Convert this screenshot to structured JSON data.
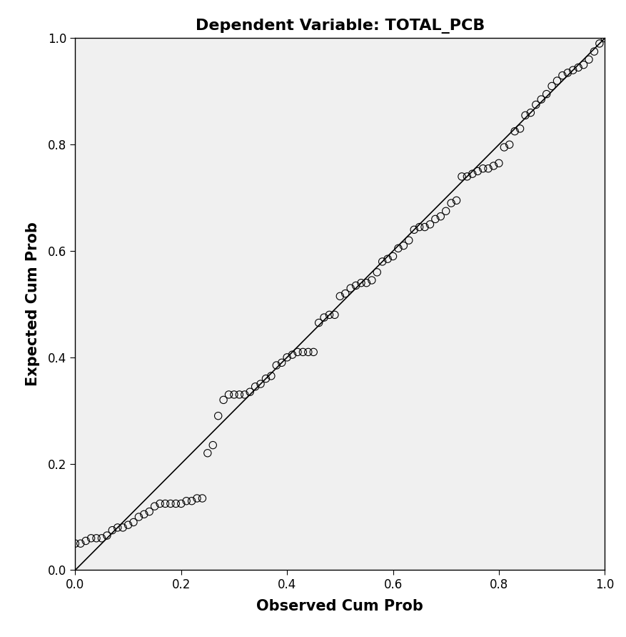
{
  "chart_data": {
    "type": "scatter",
    "title": "Dependent Variable: TOTAL_PCB",
    "x_label": "Observed Cum Prob",
    "y_label": "Expected Cum Prob",
    "x": [
      0.0,
      0.01,
      0.02,
      0.03,
      0.04,
      0.05,
      0.06,
      0.07,
      0.08,
      0.09,
      0.1,
      0.11,
      0.12,
      0.13,
      0.14,
      0.15,
      0.16,
      0.17,
      0.18,
      0.19,
      0.2,
      0.21,
      0.22,
      0.23,
      0.24,
      0.25,
      0.26,
      0.27,
      0.28,
      0.29,
      0.3,
      0.31,
      0.32,
      0.33,
      0.34,
      0.35,
      0.36,
      0.37,
      0.38,
      0.39,
      0.4,
      0.41,
      0.42,
      0.43,
      0.44,
      0.45,
      0.46,
      0.47,
      0.48,
      0.49,
      0.5,
      0.51,
      0.52,
      0.53,
      0.54,
      0.55,
      0.56,
      0.57,
      0.58,
      0.59,
      0.6,
      0.61,
      0.62,
      0.63,
      0.64,
      0.65,
      0.66,
      0.67,
      0.68,
      0.69,
      0.7,
      0.71,
      0.72,
      0.73,
      0.74,
      0.75,
      0.76,
      0.77,
      0.78,
      0.79,
      0.8,
      0.81,
      0.82,
      0.83,
      0.84,
      0.85,
      0.86,
      0.87,
      0.88,
      0.89,
      0.9,
      0.91,
      0.92,
      0.93,
      0.94,
      0.95,
      0.96,
      0.97,
      0.98,
      0.99,
      1.0
    ],
    "values": [
      0.05,
      0.05,
      0.055,
      0.06,
      0.06,
      0.06,
      0.065,
      0.075,
      0.08,
      0.08,
      0.085,
      0.09,
      0.1,
      0.105,
      0.11,
      0.12,
      0.125,
      0.125,
      0.125,
      0.125,
      0.125,
      0.13,
      0.13,
      0.135,
      0.135,
      0.22,
      0.235,
      0.29,
      0.32,
      0.33,
      0.33,
      0.33,
      0.33,
      0.335,
      0.345,
      0.35,
      0.36,
      0.365,
      0.385,
      0.39,
      0.4,
      0.405,
      0.41,
      0.41,
      0.41,
      0.41,
      0.465,
      0.475,
      0.48,
      0.48,
      0.515,
      0.52,
      0.53,
      0.535,
      0.54,
      0.54,
      0.545,
      0.56,
      0.58,
      0.585,
      0.59,
      0.605,
      0.61,
      0.62,
      0.64,
      0.645,
      0.645,
      0.65,
      0.66,
      0.665,
      0.675,
      0.69,
      0.695,
      0.74,
      0.74,
      0.745,
      0.75,
      0.755,
      0.755,
      0.76,
      0.765,
      0.795,
      0.8,
      0.825,
      0.83,
      0.855,
      0.86,
      0.875,
      0.885,
      0.895,
      0.91,
      0.92,
      0.93,
      0.935,
      0.94,
      0.945,
      0.95,
      0.96,
      0.975,
      0.99,
      1.0
    ],
    "reference_line": {
      "x": [
        0.0,
        1.0
      ],
      "y": [
        0.0,
        1.0
      ]
    },
    "marker": "o",
    "color": "#000000",
    "xlim": [
      0.0,
      1.0
    ],
    "ylim": [
      0.0,
      1.0
    ],
    "xticks": [
      0.0,
      0.2,
      0.4,
      0.6,
      0.8,
      1.0
    ],
    "yticks": [
      0.0,
      0.2,
      0.4,
      0.6,
      0.8,
      1.0
    ],
    "grid": false
  }
}
